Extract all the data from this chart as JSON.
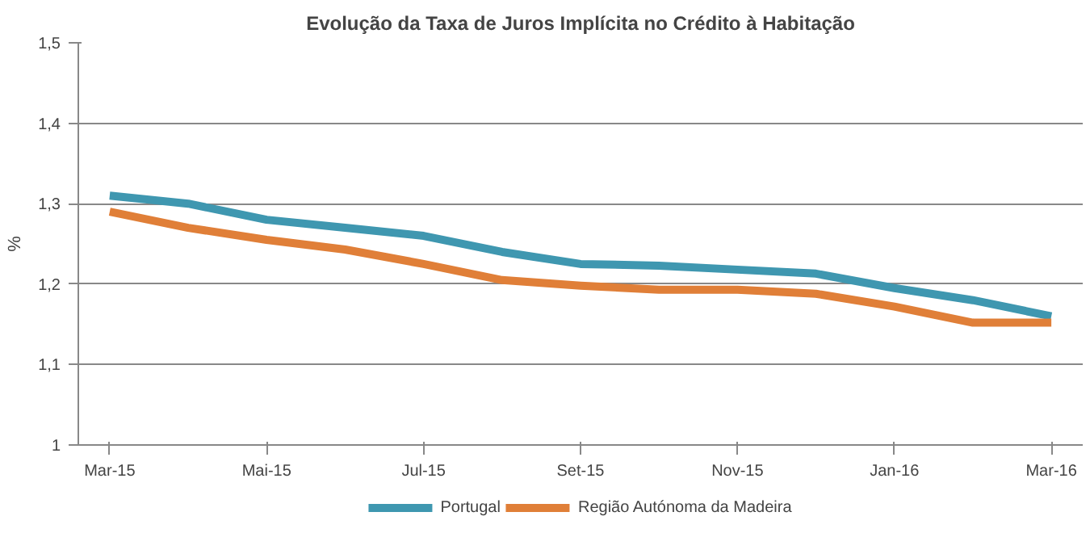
{
  "chart_data": {
    "type": "line",
    "title": "Evolução da Taxa de Juros Implícita no Crédito à Habitação",
    "ylabel": "%",
    "categories": [
      "Mar-15",
      null,
      "Mai-15",
      null,
      "Jul-15",
      null,
      "Set-15",
      null,
      "Nov-15",
      null,
      "Jan-16",
      null,
      "Mar-16"
    ],
    "series": [
      {
        "name": "Portugal",
        "color": "#3f97b0",
        "values": [
          1.31,
          1.3,
          1.28,
          1.27,
          1.26,
          1.24,
          1.225,
          1.223,
          1.218,
          1.213,
          1.195,
          1.18,
          1.16
        ]
      },
      {
        "name": "Região Autónoma da Madeira",
        "color": "#e07f38",
        "values": [
          1.29,
          1.27,
          1.255,
          1.243,
          1.225,
          1.205,
          1.198,
          1.193,
          1.193,
          1.188,
          1.172,
          1.152,
          1.152
        ]
      }
    ],
    "ylim": [
      1,
      1.5
    ],
    "yticks": [
      {
        "value": 1,
        "label": "1"
      },
      {
        "value": 1.1,
        "label": "1,1"
      },
      {
        "value": 1.2,
        "label": "1,2"
      },
      {
        "value": 1.3,
        "label": "1,3"
      },
      {
        "value": 1.4,
        "label": "1,4"
      },
      {
        "value": 1.5,
        "label": "1,5"
      }
    ],
    "grid": "y",
    "legend": "bottom",
    "line_style": "solid",
    "marker": "none"
  }
}
